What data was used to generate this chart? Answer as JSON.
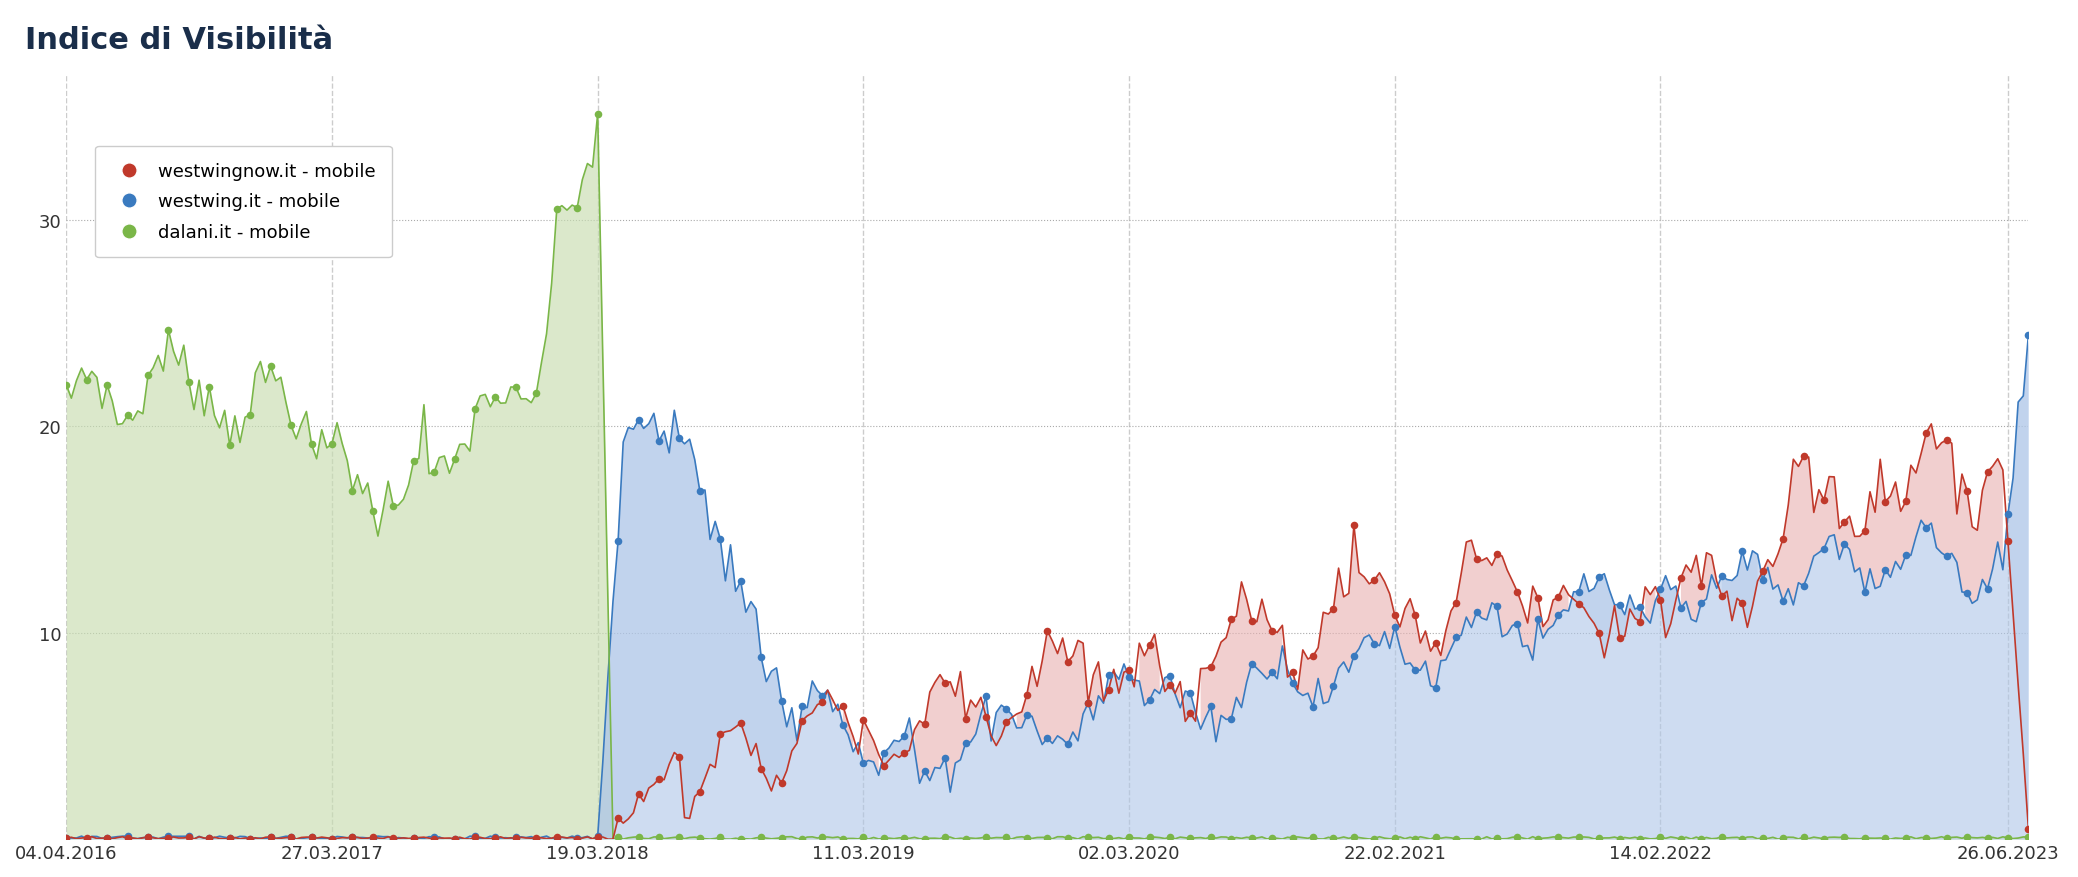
{
  "title": "Indice di Visibilità",
  "title_color": "#1a2e4a",
  "title_fontsize": 22,
  "background_color": "#ffffff",
  "plot_bg_color": "#ffffff",
  "legend_entries": [
    {
      "label": "westwingnow.it - mobile",
      "color": "#c0392b"
    },
    {
      "label": "westwing.it - mobile",
      "color": "#3a7abf"
    },
    {
      "label": "dalani.it - mobile",
      "color": "#7ab648"
    }
  ],
  "x_tick_labels": [
    "04.04.2016",
    "27.03.2017",
    "19.03.2018",
    "11.03.2019",
    "02.03.2020",
    "22.02.2021",
    "14.02.2022",
    "26.06.2023"
  ],
  "x_tick_positions": [
    0,
    52,
    104,
    156,
    208,
    260,
    312,
    380
  ],
  "yticks": [
    10,
    20,
    30
  ],
  "ylim": [
    0,
    37
  ],
  "grid_color": "#cccccc",
  "dotted_grid_color": "#aaaaaa",
  "green_fill_color": "#c8ddb0",
  "red_fill_color": "#e8b0b0",
  "blue_fill_color": "#aec6e8",
  "dalani_color": "#7ab648",
  "westwing_color": "#3a7abf",
  "westwingnow_color": "#c0392b",
  "n_points": 385
}
